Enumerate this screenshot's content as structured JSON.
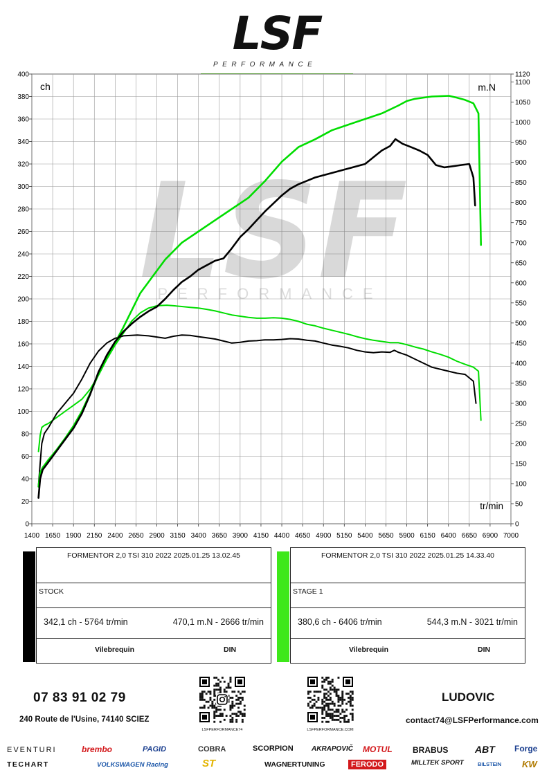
{
  "header": {
    "logo_text": "LSF",
    "logo_sub": "PERFORMANCE"
  },
  "watermark": {
    "text": "LSF",
    "sub": "PERFORMANCE"
  },
  "chart_data": {
    "type": "line",
    "x_unit_label": "tr/min",
    "y_left_unit": "ch",
    "y_right_unit": "m.N",
    "xlim": [
      1400,
      7000
    ],
    "ylim_left": [
      0,
      400
    ],
    "ylim_right": [
      0,
      1120
    ],
    "x_ticks": [
      1400,
      1650,
      1900,
      2150,
      2400,
      2650,
      2900,
      3150,
      3400,
      3650,
      3900,
      4150,
      4400,
      4650,
      4900,
      5150,
      5400,
      5650,
      5900,
      6150,
      6400,
      6650,
      6900,
      7000
    ],
    "y_left_ticks": [
      0,
      20,
      40,
      60,
      80,
      100,
      120,
      140,
      160,
      180,
      200,
      220,
      240,
      260,
      280,
      300,
      320,
      340,
      360,
      380,
      400
    ],
    "y_right_ticks": [
      0,
      50,
      100,
      150,
      200,
      250,
      300,
      350,
      400,
      450,
      500,
      550,
      600,
      650,
      700,
      750,
      800,
      850,
      900,
      950,
      1000,
      1050,
      1100,
      1120
    ],
    "grid": true,
    "series": [
      {
        "color": "#000000",
        "measure": "power",
        "axis": "left",
        "x": [
          1480,
          1500,
          1530,
          1600,
          1700,
          1800,
          1900,
          2000,
          2100,
          2200,
          2300,
          2400,
          2500,
          2600,
          2700,
          2800,
          2900,
          3000,
          3100,
          3200,
          3300,
          3400,
          3500,
          3600,
          3700,
          3800,
          3900,
          4000,
          4100,
          4200,
          4300,
          4400,
          4500,
          4600,
          4700,
          4800,
          4900,
          5000,
          5100,
          5200,
          5300,
          5400,
          5500,
          5600,
          5700,
          5764,
          5850,
          5950,
          6050,
          6150,
          6250,
          6350,
          6450,
          6550,
          6650,
          6700,
          6720
        ],
        "y": [
          23,
          40,
          48,
          55,
          65,
          75,
          85,
          98,
          115,
          135,
          150,
          162,
          171,
          178,
          184,
          189,
          193,
          200,
          208,
          215,
          220,
          226,
          230,
          234,
          236,
          245,
          255,
          262,
          270,
          278,
          285,
          292,
          298,
          302,
          305,
          308,
          310,
          312,
          314,
          316,
          318,
          320,
          326,
          332,
          336,
          342.1,
          338,
          335,
          332,
          328,
          319,
          317,
          318,
          319,
          320,
          308,
          283
        ]
      },
      {
        "color": "#00dd00",
        "measure": "power",
        "axis": "left",
        "x": [
          1480,
          1500,
          1530,
          1600,
          1700,
          1800,
          1900,
          2000,
          2100,
          2200,
          2300,
          2400,
          2500,
          2600,
          2700,
          2800,
          2900,
          3000,
          3200,
          3400,
          3600,
          3800,
          4000,
          4200,
          4400,
          4600,
          4800,
          5000,
          5200,
          5400,
          5600,
          5800,
          5900,
          6000,
          6100,
          6200,
          6406,
          6500,
          6600,
          6700,
          6760,
          6790
        ],
        "y": [
          33,
          45,
          50,
          57,
          66,
          76,
          87,
          100,
          116,
          133,
          148,
          161,
          175,
          190,
          205,
          215,
          225,
          235,
          250,
          260,
          270,
          280,
          290,
          305,
          322,
          335,
          342,
          350,
          355,
          360,
          365,
          372,
          376,
          378,
          379,
          380,
          380.6,
          379,
          377,
          374,
          365,
          248
        ]
      },
      {
        "color": "#000000",
        "measure": "torque",
        "axis": "right",
        "x": [
          1480,
          1500,
          1520,
          1550,
          1600,
          1700,
          1800,
          1900,
          2000,
          2100,
          2200,
          2300,
          2400,
          2500,
          2666,
          2800,
          2900,
          3000,
          3100,
          3200,
          3300,
          3400,
          3500,
          3600,
          3700,
          3800,
          3900,
          4000,
          4100,
          4200,
          4300,
          4400,
          4500,
          4600,
          4700,
          4800,
          4900,
          5000,
          5100,
          5200,
          5300,
          5400,
          5500,
          5600,
          5700,
          5750,
          5800,
          5900,
          6000,
          6100,
          6200,
          6300,
          6400,
          6500,
          6600,
          6700,
          6730
        ],
        "y": [
          95,
          150,
          200,
          225,
          240,
          275,
          300,
          325,
          360,
          400,
          430,
          450,
          462,
          468,
          470.1,
          468,
          465,
          462,
          467,
          470,
          469,
          466,
          463,
          460,
          455,
          450,
          452,
          455,
          456,
          458,
          458,
          459,
          461,
          460,
          457,
          455,
          450,
          445,
          442,
          438,
          432,
          428,
          426,
          428,
          427,
          432,
          427,
          420,
          410,
          400,
          390,
          385,
          380,
          375,
          372,
          355,
          300
        ]
      },
      {
        "color": "#00dd00",
        "measure": "torque",
        "axis": "right",
        "x": [
          1480,
          1500,
          1520,
          1550,
          1600,
          1700,
          1800,
          1900,
          2000,
          2100,
          2200,
          2300,
          2400,
          2500,
          2600,
          2700,
          2800,
          2900,
          3021,
          3100,
          3200,
          3300,
          3400,
          3500,
          3600,
          3700,
          3800,
          3900,
          4000,
          4100,
          4200,
          4300,
          4400,
          4500,
          4600,
          4700,
          4800,
          4900,
          5000,
          5100,
          5200,
          5300,
          5400,
          5500,
          5600,
          5700,
          5800,
          5900,
          6000,
          6100,
          6200,
          6300,
          6400,
          6500,
          6600,
          6700,
          6760,
          6790
        ],
        "y": [
          180,
          220,
          240,
          245,
          250,
          265,
          280,
          295,
          310,
          335,
          370,
          410,
          445,
          475,
          505,
          525,
          537,
          543,
          544.3,
          543,
          541,
          539,
          537,
          534,
          530,
          525,
          520,
          517,
          514,
          512,
          512,
          513,
          512,
          509,
          504,
          497,
          493,
          487,
          482,
          477,
          472,
          466,
          461,
          457,
          454,
          451,
          451,
          446,
          440,
          435,
          428,
          422,
          415,
          405,
          397,
          390,
          380,
          258
        ]
      }
    ]
  },
  "runs": [
    {
      "color": "#000000",
      "title": "FORMENTOR 2,0 TSI 310 2022    2025.01.25 13.02.45",
      "stage": "STOCK",
      "power": "342,1 ch - 5764 tr/min",
      "torque": "470,1 m.N - 2666 tr/min",
      "col1": "Vilebrequin",
      "col2": "DIN"
    },
    {
      "color": "#3ee81a",
      "title": "FORMENTOR 2,0 TSI 310 2022    2025.01.25 14.33.40",
      "stage": "STAGE 1",
      "power": "380,6 ch - 6406 tr/min",
      "torque": "544,3 m.N - 3021 tr/min",
      "col1": "Vilebrequin",
      "col2": "DIN"
    }
  ],
  "footer": {
    "phone": "07 83 91 02 79",
    "address": "240 Route de l'Usine, 74140 SCIEZ",
    "name": "LUDOVIC",
    "email": "contact74@LSFPerformance.com",
    "qr1_caption": "LSFPERFORMANCE74",
    "qr2_caption": "LSFPERFORMANCE.COM",
    "brands_row1": [
      "EVENTURI",
      "brembo",
      "PAGID",
      "COBRA",
      "SCORPION",
      "AKRAPOVIČ",
      "MOTUL",
      "BRABUS",
      "ABT",
      "Forge"
    ],
    "brands_row2": [
      "TECHART",
      "VOLKSWAGEN Racing",
      "ST",
      "WAGNERTUNING",
      "FERODO",
      "MILLTEK SPORT",
      "BILSTEIN",
      "KW"
    ]
  }
}
